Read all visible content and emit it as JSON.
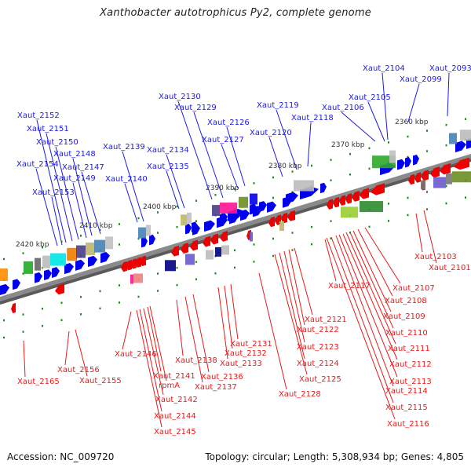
{
  "title": "Xanthobacter autotrophicus Py2, complete genome",
  "footer": {
    "accession": "Accession: NC_009720",
    "summary": "Topology: circular; Length: 5,308,934 bp; Genes: 4,805"
  },
  "colors": {
    "forward_label": "#1a1ae6",
    "reverse_label": "#e61a1a",
    "forward_gene": "#0000ee",
    "reverse_gene": "#ee0000",
    "backbone": "#808080",
    "tick": "#1a8a1a"
  },
  "scale_labels": [
    "2360 kbp",
    "2370 kbp",
    "2380 kbp",
    "2390 kbp",
    "2400 kbp",
    "2410 kbp",
    "2420 kbp"
  ],
  "forward_genes": [
    "Xaut_2093",
    "Xaut_2099",
    "Xaut_2104",
    "Xaut_2105",
    "Xaut_2106",
    "Xaut_2118",
    "Xaut_2119",
    "Xaut_2120",
    "Xaut_2126",
    "Xaut_2127",
    "Xaut_2129",
    "Xaut_2130",
    "Xaut_2134",
    "Xaut_2135",
    "Xaut_2139",
    "Xaut_2140",
    "Xaut_2147",
    "Xaut_2148",
    "Xaut_2149",
    "Xaut_2150",
    "Xaut_2151",
    "Xaut_2152",
    "Xaut_2153",
    "Xaut_2154"
  ],
  "reverse_genes": [
    "Xaut_2101",
    "Xaut_2103",
    "Xaut_2107",
    "Xaut_2108",
    "Xaut_2109",
    "Xaut_2110",
    "Xaut_2111",
    "Xaut_2112",
    "Xaut_2113",
    "Xaut_2114",
    "Xaut_2115",
    "Xaut_2116",
    "Xaut_2117",
    "Xaut_2121",
    "Xaut_2122",
    "Xaut_2123",
    "Xaut_2124",
    "Xaut_2125",
    "Xaut_2128",
    "Xaut_2131",
    "Xaut_2132",
    "Xaut_2133",
    "Xaut_2136",
    "Xaut_2137",
    "Xaut_2138",
    "rpmA",
    "Xaut_2141",
    "Xaut_2142",
    "Xaut_2144",
    "Xaut_2145",
    "Xaut_2146",
    "Xaut_2155",
    "Xaut_2156",
    "Xaut_2165"
  ]
}
